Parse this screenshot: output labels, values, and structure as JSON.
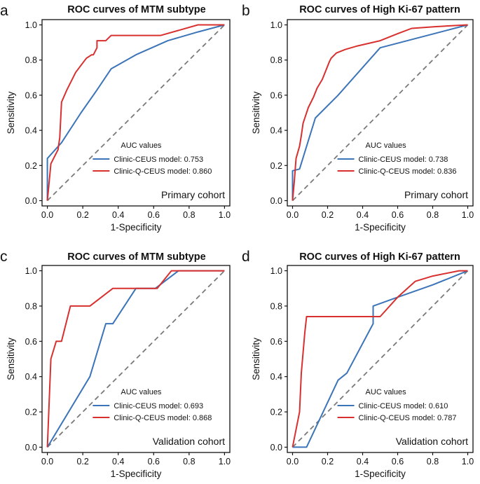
{
  "chart_data": [
    {
      "panel_letter": "a",
      "type": "line",
      "title": "ROC curves of MTM subtype",
      "xlabel": "1-Specificity",
      "ylabel": "Sensitivity",
      "xlim": [
        0,
        1
      ],
      "ylim": [
        0,
        1
      ],
      "x_ticks": [
        "0.0",
        "0.2",
        "0.4",
        "0.6",
        "0.8",
        "1.0"
      ],
      "y_ticks": [
        "0.0",
        "0.2",
        "0.4",
        "0.6",
        "0.8",
        "1.0"
      ],
      "legend_title": "AUC values",
      "cohort": "Primary cohort",
      "diagonal": true,
      "series": [
        {
          "name": "Clinic-CEUS model: 0.753",
          "color": "#3b74b8",
          "x": [
            0.0,
            0.0,
            0.08,
            0.19,
            0.28,
            0.36,
            0.5,
            0.68,
            0.85,
            1.0
          ],
          "y": [
            0.0,
            0.24,
            0.33,
            0.5,
            0.63,
            0.75,
            0.83,
            0.91,
            0.96,
            1.0
          ]
        },
        {
          "name": "Clinic-Q-CEUS model: 0.860",
          "color": "#d8302f",
          "x": [
            0.0,
            0.02,
            0.06,
            0.07,
            0.08,
            0.11,
            0.16,
            0.22,
            0.25,
            0.26,
            0.28,
            0.28,
            0.33,
            0.36,
            0.5,
            0.6,
            0.64,
            0.85,
            0.94,
            1.0
          ],
          "y": [
            0.0,
            0.21,
            0.29,
            0.36,
            0.56,
            0.63,
            0.73,
            0.81,
            0.83,
            0.83,
            0.87,
            0.91,
            0.91,
            0.94,
            0.94,
            0.94,
            0.94,
            1.0,
            1.0,
            1.0
          ]
        }
      ]
    },
    {
      "panel_letter": "b",
      "type": "line",
      "title": "ROC curves of High Ki-67 pattern",
      "xlabel": "1-Specificity",
      "ylabel": "Sensitivity",
      "xlim": [
        0,
        1
      ],
      "ylim": [
        0,
        1
      ],
      "x_ticks": [
        "0.0",
        "0.2",
        "0.4",
        "0.6",
        "0.8",
        "1.0"
      ],
      "y_ticks": [
        "0.0",
        "0.2",
        "0.4",
        "0.6",
        "0.8",
        "1.0"
      ],
      "legend_title": "AUC values",
      "cohort": "Primary cohort",
      "diagonal": true,
      "series": [
        {
          "name": "Clinic-CEUS model: 0.738",
          "color": "#3b74b8",
          "x": [
            0.0,
            0.0,
            0.04,
            0.13,
            0.26,
            0.5,
            1.0
          ],
          "y": [
            0.0,
            0.17,
            0.18,
            0.47,
            0.6,
            0.87,
            1.0
          ]
        },
        {
          "name": "Clinic-Q-CEUS model: 0.836",
          "color": "#d8302f",
          "x": [
            0.0,
            0.01,
            0.02,
            0.04,
            0.05,
            0.06,
            0.07,
            0.09,
            0.1,
            0.12,
            0.14,
            0.17,
            0.19,
            0.21,
            0.22,
            0.25,
            0.3,
            0.37,
            0.5,
            0.6,
            0.68,
            0.82,
            1.0
          ],
          "y": [
            0.0,
            0.11,
            0.24,
            0.31,
            0.37,
            0.44,
            0.47,
            0.53,
            0.55,
            0.59,
            0.64,
            0.69,
            0.74,
            0.79,
            0.81,
            0.84,
            0.86,
            0.88,
            0.91,
            0.95,
            0.98,
            0.99,
            1.0
          ]
        }
      ]
    },
    {
      "panel_letter": "c",
      "type": "line",
      "title": "ROC curves of MTM subtype",
      "xlabel": "1-Specificity",
      "ylabel": "Sensitivity",
      "xlim": [
        0,
        1
      ],
      "ylim": [
        0,
        1
      ],
      "x_ticks": [
        "0.0",
        "0.2",
        "0.4",
        "0.6",
        "0.8",
        "1.0"
      ],
      "y_ticks": [
        "0.0",
        "0.2",
        "0.4",
        "0.6",
        "0.8",
        "1.0"
      ],
      "legend_title": "AUC values",
      "cohort": "Validation cohort",
      "diagonal": true,
      "series": [
        {
          "name": "Clinic-CEUS model: 0.693",
          "color": "#3b74b8",
          "x": [
            0.0,
            0.24,
            0.33,
            0.37,
            0.5,
            0.61,
            0.74,
            1.0
          ],
          "y": [
            0.0,
            0.4,
            0.7,
            0.7,
            0.9,
            0.9,
            1.0,
            1.0
          ]
        },
        {
          "name": "Clinic-Q-CEUS model: 0.868",
          "color": "#d8302f",
          "x": [
            0.0,
            0.02,
            0.05,
            0.08,
            0.13,
            0.24,
            0.37,
            0.5,
            0.62,
            0.7,
            1.0
          ],
          "y": [
            0.0,
            0.5,
            0.6,
            0.6,
            0.8,
            0.8,
            0.9,
            0.9,
            0.9,
            1.0,
            1.0
          ]
        }
      ]
    },
    {
      "panel_letter": "d",
      "type": "line",
      "title": "ROC curves of High Ki-67 pattern",
      "xlabel": "1-Specificity",
      "ylabel": "Sensitivity",
      "xlim": [
        0,
        1
      ],
      "ylim": [
        0,
        1
      ],
      "x_ticks": [
        "0.0",
        "0.2",
        "0.4",
        "0.6",
        "0.8",
        "1.0"
      ],
      "y_ticks": [
        "0.0",
        "0.2",
        "0.4",
        "0.6",
        "0.8",
        "1.0"
      ],
      "legend_title": "AUC values",
      "cohort": "Validation cohort",
      "diagonal": true,
      "series": [
        {
          "name": "Clinic-CEUS model: 0.610",
          "color": "#3b74b8",
          "x": [
            0.0,
            0.08,
            0.26,
            0.31,
            0.46,
            0.46,
            0.6,
            0.8,
            1.0
          ],
          "y": [
            0.0,
            0.0,
            0.38,
            0.42,
            0.7,
            0.8,
            0.85,
            0.92,
            1.0
          ]
        },
        {
          "name": "Clinic-Q-CEUS model: 0.787",
          "color": "#d8302f",
          "x": [
            0.0,
            0.04,
            0.05,
            0.07,
            0.08,
            0.5,
            0.6,
            0.7,
            0.8,
            0.95,
            1.0
          ],
          "y": [
            0.0,
            0.2,
            0.42,
            0.65,
            0.74,
            0.74,
            0.85,
            0.94,
            0.97,
            1.0,
            1.0
          ]
        }
      ]
    }
  ],
  "colors": {
    "diagonal": "#7a7a7a",
    "axis": "#111111"
  }
}
